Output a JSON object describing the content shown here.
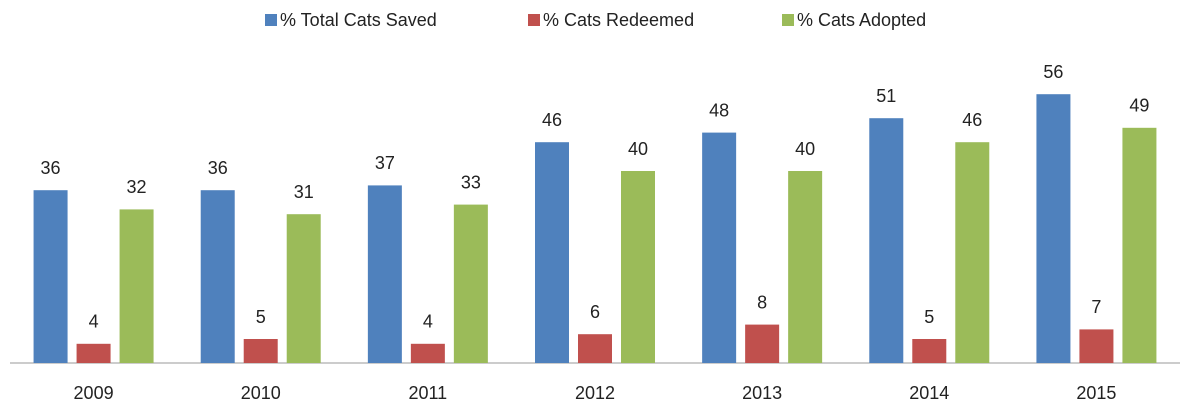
{
  "chart_data": {
    "type": "bar",
    "categories": [
      "2009",
      "2010",
      "2011",
      "2012",
      "2013",
      "2014",
      "2015"
    ],
    "series": [
      {
        "name": "% Total Cats Saved",
        "color": "#4f81bd",
        "values": [
          36,
          36,
          37,
          46,
          48,
          51,
          56
        ]
      },
      {
        "name": "% Cats Redeemed",
        "color": "#c0504d",
        "values": [
          4,
          5,
          4,
          6,
          8,
          5,
          7
        ]
      },
      {
        "name": "% Cats Adopted",
        "color": "#9bbb59",
        "values": [
          32,
          31,
          33,
          40,
          40,
          46,
          49
        ]
      }
    ]
  }
}
